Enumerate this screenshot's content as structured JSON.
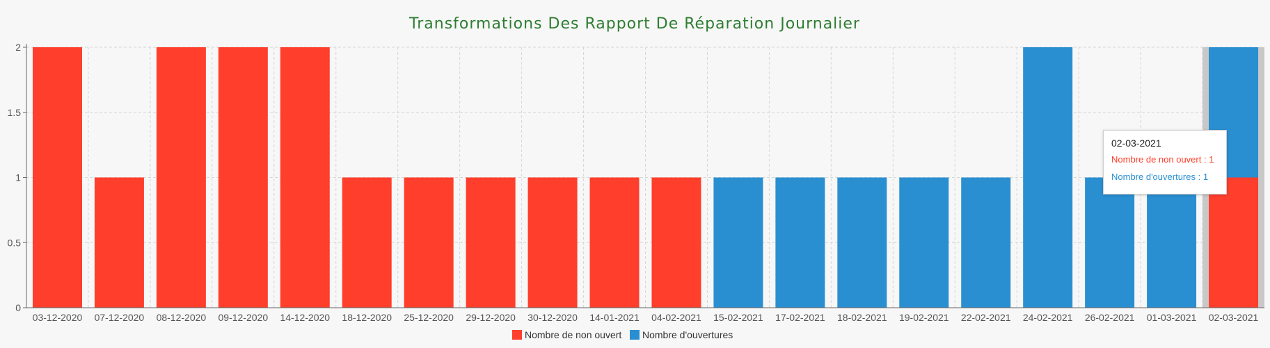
{
  "chart_data": {
    "type": "bar",
    "title": "Transformations Des Rapport De Réparation Journalier",
    "xlabel": "",
    "ylabel": "",
    "ylim": [
      0,
      2
    ],
    "y_ticks": [
      "0",
      "0.5",
      "1",
      "1.5",
      "2"
    ],
    "stacked": true,
    "grid": true,
    "legend_position": "bottom",
    "categories": [
      "03-12-2020",
      "07-12-2020",
      "08-12-2020",
      "09-12-2020",
      "14-12-2020",
      "18-12-2020",
      "25-12-2020",
      "29-12-2020",
      "30-12-2020",
      "14-01-2021",
      "04-02-2021",
      "15-02-2021",
      "17-02-2021",
      "18-02-2021",
      "19-02-2021",
      "22-02-2021",
      "24-02-2021",
      "26-02-2021",
      "01-03-2021",
      "02-03-2021"
    ],
    "series": [
      {
        "name": "Nombre de non ouvert",
        "color": "#ff3e2b",
        "values": [
          2,
          1,
          2,
          2,
          2,
          1,
          1,
          1,
          1,
          1,
          1,
          0,
          0,
          0,
          0,
          0,
          0,
          0,
          0,
          1
        ]
      },
      {
        "name": "Nombre d'ouvertures",
        "color": "#2a8fd1",
        "values": [
          0,
          0,
          0,
          0,
          0,
          0,
          0,
          0,
          0,
          0,
          0,
          1,
          1,
          1,
          1,
          1,
          2,
          1,
          1,
          1
        ]
      }
    ],
    "highlighted_category": "02-03-2021"
  },
  "tooltip": {
    "title": "02-03-2021",
    "line1": "Nombre de non ouvert : 1",
    "line2": "Nombre d'ouvertures : 1",
    "line1_color": "#ff3e2b",
    "line2_color": "#2a8fd1"
  },
  "colors": {
    "title": "#2e7d32",
    "grid": "#d6d6d6",
    "highlight": "#c8c8c8"
  }
}
